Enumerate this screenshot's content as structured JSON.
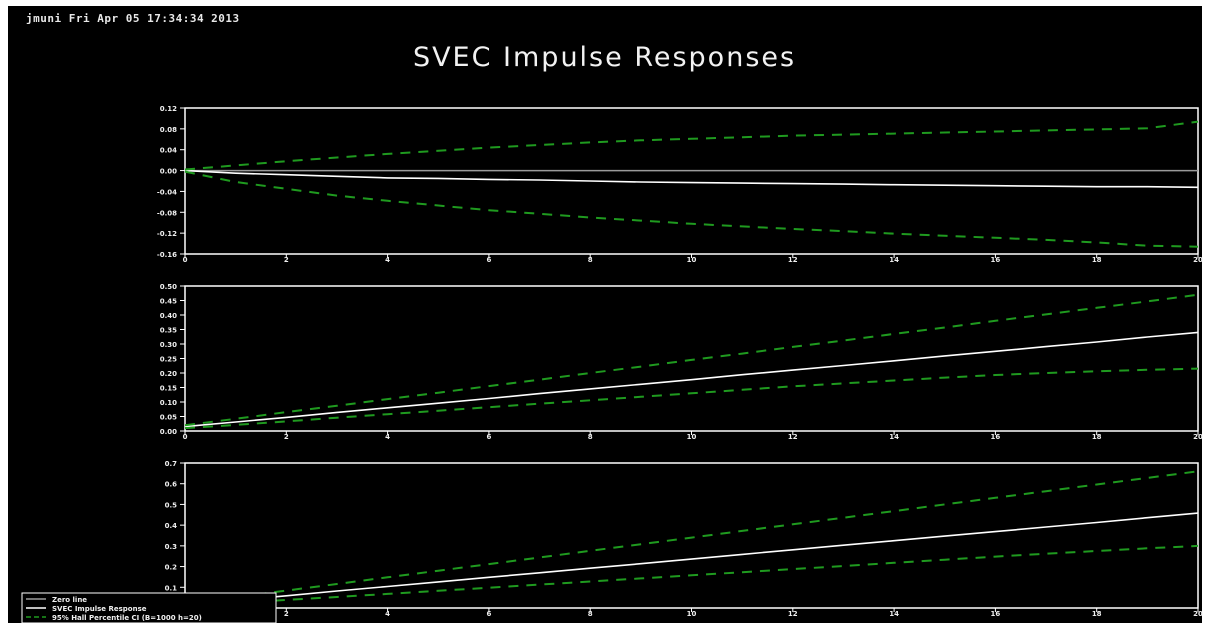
{
  "header_text": "jmuni   Fri Apr 05 17:34:34 2013",
  "title": "SVEC Impulse Responses",
  "colors": {
    "background": "#000000",
    "axes": "#ffffff",
    "response": "#ffffff",
    "ci": "#1f9a1f"
  },
  "legend": {
    "items": [
      {
        "label": "Zero line",
        "style": "solid",
        "color": "#9a9a9a"
      },
      {
        "label": "SVEC Impulse Response",
        "style": "solid",
        "color": "#ffffff"
      },
      {
        "label": "95% Hall Percentile CI (B=1000 h=20)",
        "style": "dashed",
        "color": "#1f9a1f"
      }
    ]
  },
  "chart_data": [
    {
      "type": "line",
      "x": [
        0,
        1,
        2,
        3,
        4,
        5,
        6,
        7,
        8,
        9,
        10,
        11,
        12,
        13,
        14,
        15,
        16,
        17,
        18,
        19,
        20
      ],
      "xticks": [
        "0",
        "2",
        "4",
        "6",
        "8",
        "10",
        "12",
        "14",
        "16",
        "18",
        "20"
      ],
      "xlim": [
        0,
        20
      ],
      "ylim": [
        -0.16,
        0.12
      ],
      "yticks": [
        "0.12",
        "0.08",
        "0.04",
        "0.00",
        "-0.04",
        "-0.08",
        "-0.12",
        "-0.16"
      ],
      "zero_line": true,
      "series": [
        {
          "name": "SVEC Impulse Response",
          "style": "response",
          "values": [
            0,
            -0.005,
            -0.008,
            -0.011,
            -0.014,
            -0.015,
            -0.017,
            -0.018,
            -0.02,
            -0.022,
            -0.023,
            -0.024,
            -0.025,
            -0.026,
            -0.027,
            -0.028,
            -0.029,
            -0.03,
            -0.031,
            -0.031,
            -0.032
          ]
        },
        {
          "name": "95% Hall Percentile CI upper",
          "style": "ci",
          "values": [
            0.002,
            0.01,
            0.018,
            0.025,
            0.032,
            0.038,
            0.044,
            0.049,
            0.054,
            0.058,
            0.061,
            0.064,
            0.067,
            0.069,
            0.071,
            0.073,
            0.075,
            0.077,
            0.079,
            0.081,
            0.094
          ]
        },
        {
          "name": "95% Hall Percentile CI lower",
          "style": "ci",
          "values": [
            -0.002,
            -0.022,
            -0.035,
            -0.048,
            -0.058,
            -0.067,
            -0.076,
            -0.083,
            -0.09,
            -0.096,
            -0.102,
            -0.107,
            -0.112,
            -0.116,
            -0.121,
            -0.125,
            -0.129,
            -0.133,
            -0.138,
            -0.144,
            -0.146
          ]
        }
      ]
    },
    {
      "type": "line",
      "x": [
        0,
        1,
        2,
        3,
        4,
        5,
        6,
        7,
        8,
        9,
        10,
        11,
        12,
        13,
        14,
        15,
        16,
        17,
        18,
        19,
        20
      ],
      "xticks": [
        "0",
        "2",
        "4",
        "6",
        "8",
        "10",
        "12",
        "14",
        "16",
        "18",
        "20"
      ],
      "xlim": [
        0,
        20
      ],
      "ylim": [
        0.0,
        0.5
      ],
      "yticks": [
        "0.50",
        "0.45",
        "0.40",
        "0.35",
        "0.30",
        "0.25",
        "0.20",
        "0.15",
        "0.10",
        "0.05",
        "0.00"
      ],
      "series": [
        {
          "name": "SVEC Impulse Response",
          "style": "response",
          "values": [
            0.015,
            0.031,
            0.047,
            0.064,
            0.08,
            0.096,
            0.112,
            0.129,
            0.145,
            0.161,
            0.177,
            0.194,
            0.21,
            0.226,
            0.242,
            0.259,
            0.275,
            0.291,
            0.307,
            0.324,
            0.34
          ]
        },
        {
          "name": "95% Hall Percentile CI upper",
          "style": "ci",
          "values": [
            0.02,
            0.042,
            0.065,
            0.087,
            0.11,
            0.132,
            0.155,
            0.177,
            0.2,
            0.222,
            0.245,
            0.267,
            0.29,
            0.312,
            0.335,
            0.357,
            0.38,
            0.402,
            0.425,
            0.447,
            0.47
          ]
        },
        {
          "name": "95% Hall Percentile CI lower",
          "style": "ci",
          "values": [
            0.01,
            0.021,
            0.033,
            0.046,
            0.058,
            0.07,
            0.082,
            0.094,
            0.106,
            0.118,
            0.13,
            0.142,
            0.154,
            0.164,
            0.174,
            0.184,
            0.193,
            0.2,
            0.206,
            0.211,
            0.215
          ]
        }
      ]
    },
    {
      "type": "line",
      "x": [
        0,
        1,
        2,
        3,
        4,
        5,
        6,
        7,
        8,
        9,
        10,
        11,
        12,
        13,
        14,
        15,
        16,
        17,
        18,
        19,
        20
      ],
      "xticks": [
        "0",
        "2",
        "4",
        "6",
        "8",
        "10",
        "12",
        "14",
        "16",
        "18",
        "20"
      ],
      "xlim": [
        0,
        20
      ],
      "ylim": [
        0.0,
        0.7
      ],
      "yticks": [
        "0.7",
        "0.6",
        "0.5",
        "0.4",
        "0.3",
        "0.2",
        "0.1"
      ],
      "series": [
        {
          "name": "SVEC Impulse Response",
          "style": "response",
          "values": [
            0.015,
            0.037,
            0.059,
            0.082,
            0.104,
            0.126,
            0.148,
            0.17,
            0.192,
            0.214,
            0.236,
            0.259,
            0.281,
            0.303,
            0.325,
            0.347,
            0.369,
            0.391,
            0.413,
            0.436,
            0.458
          ]
        },
        {
          "name": "95% Hall Percentile CI upper",
          "style": "ci",
          "values": [
            0.02,
            0.052,
            0.084,
            0.116,
            0.148,
            0.18,
            0.212,
            0.244,
            0.276,
            0.308,
            0.34,
            0.372,
            0.404,
            0.436,
            0.468,
            0.5,
            0.532,
            0.564,
            0.596,
            0.628,
            0.66
          ]
        },
        {
          "name": "95% Hall Percentile CI lower",
          "style": "ci",
          "values": [
            0.01,
            0.024,
            0.039,
            0.053,
            0.068,
            0.083,
            0.098,
            0.113,
            0.128,
            0.143,
            0.158,
            0.173,
            0.188,
            0.203,
            0.218,
            0.233,
            0.248,
            0.262,
            0.275,
            0.288,
            0.3
          ]
        }
      ]
    }
  ]
}
